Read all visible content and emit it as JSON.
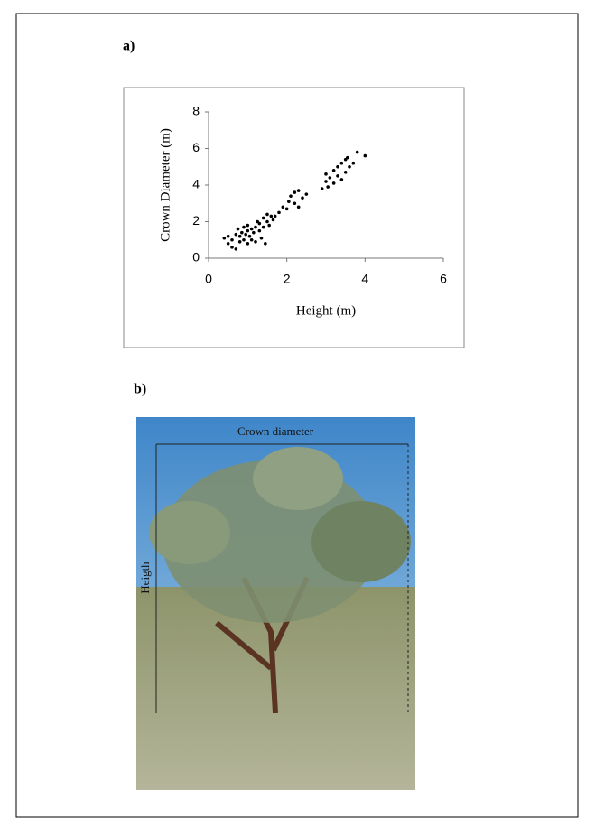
{
  "panel_a": "a)",
  "panel_b": "b)",
  "photo": {
    "width_label": "Crown diameter",
    "height_label": "Heigth"
  },
  "chart_data": {
    "type": "scatter",
    "x_label": "Height (m)",
    "y_label": "Crown Diameter (m)",
    "color": "#000000",
    "x": [
      0.4,
      0.5,
      0.5,
      0.6,
      0.6,
      0.7,
      0.7,
      0.75,
      0.8,
      0.8,
      0.85,
      0.9,
      0.9,
      0.95,
      1.0,
      1.0,
      1.0,
      1.05,
      1.1,
      1.1,
      1.15,
      1.2,
      1.2,
      1.25,
      1.3,
      1.3,
      1.35,
      1.4,
      1.4,
      1.45,
      1.5,
      1.5,
      1.55,
      1.6,
      1.65,
      1.7,
      1.8,
      1.9,
      2.0,
      2.05,
      2.1,
      2.2,
      2.2,
      2.3,
      2.3,
      2.4,
      2.5,
      2.9,
      3.0,
      3.0,
      3.05,
      3.1,
      3.2,
      3.2,
      3.3,
      3.3,
      3.4,
      3.4,
      3.5,
      3.5,
      3.55,
      3.6,
      3.7,
      3.8,
      4.0
    ],
    "values": [
      1.1,
      0.8,
      1.2,
      0.6,
      1.0,
      0.5,
      1.3,
      1.6,
      0.9,
      1.2,
      1.4,
      1.0,
      1.7,
      1.3,
      0.8,
      1.5,
      1.8,
      1.2,
      1.6,
      1.0,
      1.4,
      1.7,
      0.9,
      2.0,
      1.5,
      1.9,
      1.1,
      2.2,
      1.7,
      0.8,
      2.0,
      2.4,
      1.8,
      2.3,
      2.1,
      2.3,
      2.5,
      2.8,
      2.7,
      3.1,
      3.4,
      3.0,
      3.6,
      2.8,
      3.7,
      3.3,
      3.5,
      3.8,
      4.2,
      4.6,
      3.9,
      4.4,
      4.8,
      4.1,
      5.0,
      4.5,
      5.2,
      4.3,
      5.4,
      4.7,
      5.5,
      5.0,
      5.2,
      5.8,
      5.6
    ],
    "xlim": [
      0,
      6
    ],
    "ylim": [
      0,
      8
    ],
    "xticks": [
      0,
      2,
      4,
      6
    ],
    "yticks": [
      0,
      2,
      4,
      6,
      8
    ]
  }
}
